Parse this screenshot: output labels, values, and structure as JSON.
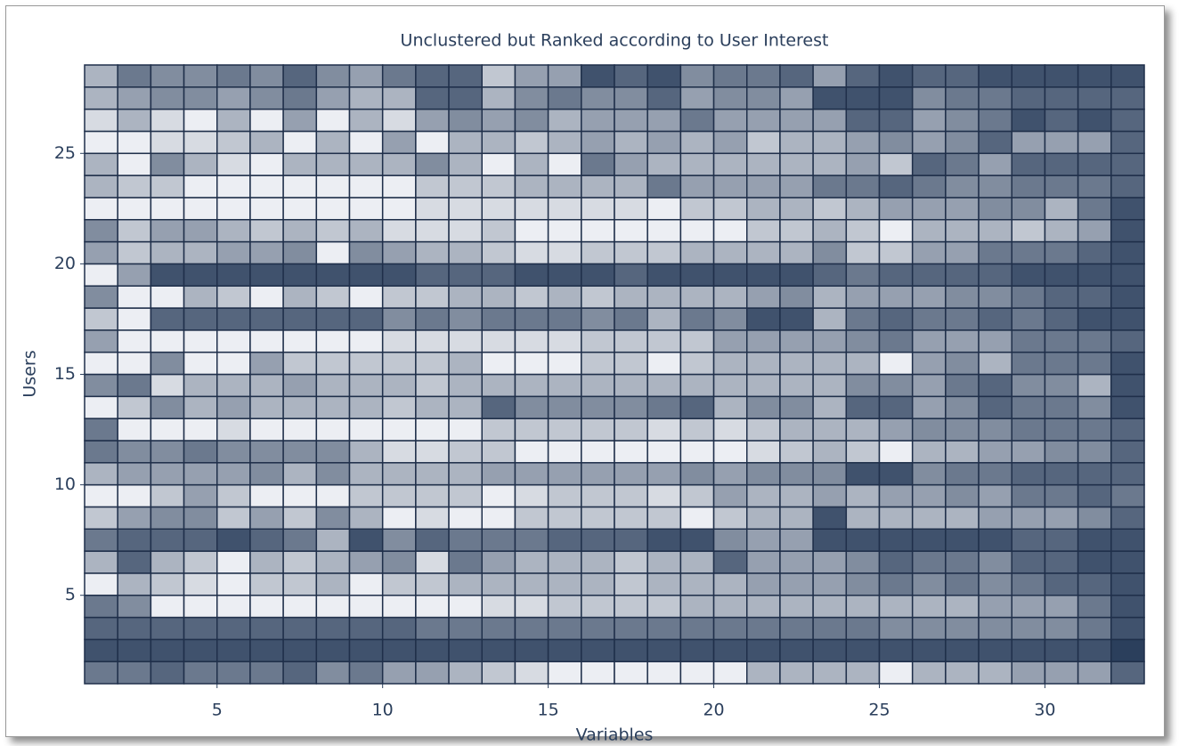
{
  "chart_data": {
    "type": "heatmap",
    "title": "Unclustered but Ranked according to User Interest",
    "xlabel": "Variables",
    "ylabel": "Users",
    "xlim": [
      1,
      33
    ],
    "ylim": [
      1,
      29
    ],
    "xticks": [
      5,
      10,
      15,
      20,
      25,
      30
    ],
    "yticks": [
      5,
      10,
      15,
      20,
      25
    ],
    "zlim": [
      0,
      9
    ],
    "colormap": [
      "#2b3f5c",
      "#eceef3"
    ],
    "cell_border": "#1f2f4a",
    "z": [
      [
        3,
        3,
        2,
        3,
        3,
        3,
        2,
        4,
        3,
        5,
        5,
        6,
        7,
        8,
        9,
        9,
        9,
        9,
        9,
        9,
        6,
        6,
        6,
        6,
        9,
        6,
        6,
        6,
        5,
        5,
        5,
        2
      ],
      [
        1,
        1,
        1,
        1,
        1,
        1,
        1,
        1,
        1,
        1,
        1,
        1,
        1,
        1,
        1,
        1,
        1,
        1,
        1,
        1,
        1,
        1,
        1,
        1,
        1,
        1,
        1,
        1,
        1,
        1,
        1,
        0
      ],
      [
        2,
        2,
        2,
        2,
        2,
        2,
        2,
        2,
        2,
        2,
        3,
        3,
        3,
        3,
        3,
        3,
        3,
        3,
        3,
        3,
        3,
        3,
        3,
        3,
        4,
        4,
        4,
        4,
        4,
        4,
        3,
        1
      ],
      [
        3,
        4,
        9,
        9,
        9,
        9,
        9,
        9,
        9,
        9,
        9,
        9,
        8,
        8,
        7,
        7,
        7,
        7,
        6,
        6,
        6,
        6,
        6,
        6,
        6,
        6,
        6,
        5,
        5,
        5,
        3,
        1
      ],
      [
        9,
        6,
        7,
        8,
        9,
        7,
        7,
        6,
        9,
        7,
        7,
        6,
        6,
        6,
        6,
        6,
        7,
        6,
        6,
        6,
        5,
        5,
        5,
        4,
        3,
        4,
        3,
        4,
        3,
        2,
        2,
        1
      ],
      [
        6,
        2,
        6,
        7,
        9,
        6,
        7,
        6,
        5,
        4,
        8,
        3,
        5,
        6,
        6,
        6,
        7,
        6,
        6,
        2,
        5,
        5,
        5,
        4,
        2,
        3,
        3,
        4,
        2,
        2,
        1,
        1
      ],
      [
        3,
        2,
        2,
        2,
        1,
        2,
        3,
        6,
        1,
        4,
        2,
        3,
        3,
        3,
        2,
        2,
        2,
        1,
        1,
        4,
        5,
        5,
        1,
        1,
        1,
        1,
        1,
        1,
        2,
        2,
        1,
        1
      ],
      [
        7,
        5,
        4,
        4,
        7,
        5,
        7,
        4,
        6,
        9,
        8,
        9,
        9,
        7,
        7,
        7,
        7,
        7,
        9,
        7,
        6,
        6,
        1,
        6,
        6,
        6,
        6,
        5,
        5,
        5,
        4,
        2
      ],
      [
        9,
        9,
        7,
        5,
        7,
        9,
        9,
        9,
        7,
        7,
        7,
        7,
        9,
        8,
        7,
        7,
        7,
        8,
        7,
        5,
        6,
        6,
        5,
        6,
        5,
        5,
        4,
        5,
        3,
        3,
        2,
        3
      ],
      [
        6,
        5,
        5,
        5,
        5,
        4,
        6,
        4,
        6,
        6,
        6,
        6,
        5,
        5,
        5,
        5,
        5,
        5,
        4,
        5,
        4,
        4,
        4,
        1,
        1,
        4,
        3,
        3,
        2,
        2,
        2,
        2
      ],
      [
        3,
        4,
        4,
        3,
        4,
        4,
        4,
        4,
        6,
        8,
        8,
        7,
        7,
        9,
        9,
        9,
        9,
        9,
        9,
        9,
        8,
        7,
        6,
        7,
        9,
        6,
        6,
        5,
        5,
        4,
        4,
        2
      ],
      [
        3,
        9,
        9,
        9,
        8,
        9,
        9,
        9,
        9,
        9,
        9,
        9,
        7,
        7,
        7,
        7,
        7,
        8,
        7,
        8,
        7,
        6,
        6,
        6,
        5,
        4,
        4,
        4,
        3,
        3,
        3,
        2
      ],
      [
        9,
        7,
        4,
        6,
        5,
        6,
        6,
        6,
        6,
        7,
        6,
        6,
        2,
        4,
        4,
        4,
        4,
        3,
        2,
        6,
        4,
        4,
        6,
        2,
        2,
        5,
        4,
        2,
        3,
        3,
        4,
        1
      ],
      [
        4,
        3,
        8,
        6,
        6,
        6,
        5,
        6,
        6,
        6,
        7,
        6,
        6,
        6,
        6,
        6,
        6,
        6,
        6,
        6,
        6,
        6,
        6,
        4,
        4,
        5,
        3,
        2,
        4,
        4,
        6,
        1
      ],
      [
        9,
        9,
        4,
        9,
        9,
        5,
        7,
        7,
        7,
        7,
        7,
        6,
        9,
        9,
        9,
        7,
        7,
        9,
        7,
        6,
        6,
        6,
        6,
        6,
        9,
        5,
        4,
        6,
        3,
        3,
        3,
        1
      ],
      [
        5,
        9,
        9,
        9,
        9,
        9,
        9,
        9,
        9,
        8,
        8,
        8,
        8,
        8,
        8,
        7,
        7,
        7,
        7,
        5,
        5,
        5,
        5,
        4,
        3,
        5,
        5,
        5,
        3,
        3,
        3,
        2
      ],
      [
        7,
        9,
        2,
        2,
        2,
        2,
        2,
        2,
        2,
        4,
        3,
        4,
        3,
        3,
        3,
        4,
        3,
        6,
        3,
        4,
        1,
        1,
        6,
        3,
        2,
        3,
        3,
        2,
        3,
        2,
        1,
        1
      ],
      [
        4,
        9,
        9,
        6,
        7,
        9,
        6,
        7,
        9,
        7,
        7,
        6,
        6,
        7,
        6,
        7,
        6,
        6,
        6,
        6,
        5,
        4,
        6,
        5,
        5,
        5,
        4,
        4,
        3,
        2,
        2,
        1
      ],
      [
        9,
        5,
        1,
        1,
        1,
        1,
        1,
        1,
        1,
        1,
        2,
        2,
        2,
        1,
        1,
        1,
        2,
        1,
        1,
        1,
        1,
        1,
        2,
        3,
        2,
        2,
        2,
        2,
        1,
        1,
        1,
        1
      ],
      [
        5,
        7,
        6,
        6,
        5,
        5,
        4,
        9,
        4,
        5,
        6,
        6,
        7,
        8,
        8,
        7,
        7,
        7,
        6,
        6,
        6,
        6,
        4,
        7,
        7,
        5,
        5,
        3,
        3,
        3,
        2,
        1
      ],
      [
        4,
        7,
        5,
        5,
        6,
        7,
        6,
        7,
        6,
        8,
        8,
        8,
        7,
        9,
        9,
        9,
        9,
        9,
        9,
        9,
        7,
        7,
        6,
        7,
        9,
        6,
        6,
        6,
        7,
        6,
        5,
        1
      ],
      [
        9,
        9,
        9,
        9,
        9,
        9,
        9,
        9,
        9,
        9,
        8,
        8,
        8,
        8,
        8,
        8,
        8,
        9,
        7,
        7,
        6,
        6,
        7,
        6,
        5,
        5,
        5,
        4,
        4,
        6,
        3,
        1
      ],
      [
        6,
        7,
        7,
        9,
        9,
        9,
        9,
        9,
        9,
        9,
        7,
        7,
        7,
        6,
        6,
        6,
        6,
        3,
        5,
        5,
        5,
        5,
        3,
        3,
        2,
        3,
        4,
        4,
        3,
        3,
        3,
        2
      ],
      [
        6,
        9,
        4,
        6,
        8,
        9,
        6,
        6,
        6,
        6,
        4,
        6,
        9,
        6,
        9,
        3,
        5,
        6,
        6,
        6,
        6,
        6,
        6,
        5,
        7,
        2,
        3,
        5,
        2,
        2,
        2,
        2
      ],
      [
        9,
        9,
        8,
        8,
        7,
        6,
        9,
        6,
        9,
        5,
        9,
        6,
        6,
        7,
        6,
        5,
        6,
        5,
        6,
        5,
        7,
        6,
        6,
        5,
        4,
        5,
        4,
        2,
        5,
        5,
        5,
        2
      ],
      [
        8,
        6,
        8,
        9,
        6,
        9,
        5,
        9,
        6,
        8,
        5,
        4,
        5,
        4,
        6,
        5,
        5,
        5,
        3,
        5,
        5,
        5,
        5,
        2,
        2,
        5,
        4,
        3,
        1,
        2,
        1,
        2
      ],
      [
        6,
        5,
        4,
        4,
        5,
        4,
        3,
        5,
        6,
        6,
        2,
        2,
        6,
        4,
        3,
        4,
        4,
        2,
        5,
        4,
        4,
        5,
        1,
        1,
        1,
        4,
        3,
        3,
        2,
        2,
        2,
        2
      ],
      [
        6,
        3,
        4,
        4,
        3,
        4,
        2,
        4,
        5,
        3,
        2,
        2,
        7,
        5,
        5,
        1,
        2,
        1,
        4,
        3,
        3,
        2,
        5,
        2,
        1,
        2,
        2,
        1,
        1,
        1,
        1,
        1
      ]
    ]
  }
}
